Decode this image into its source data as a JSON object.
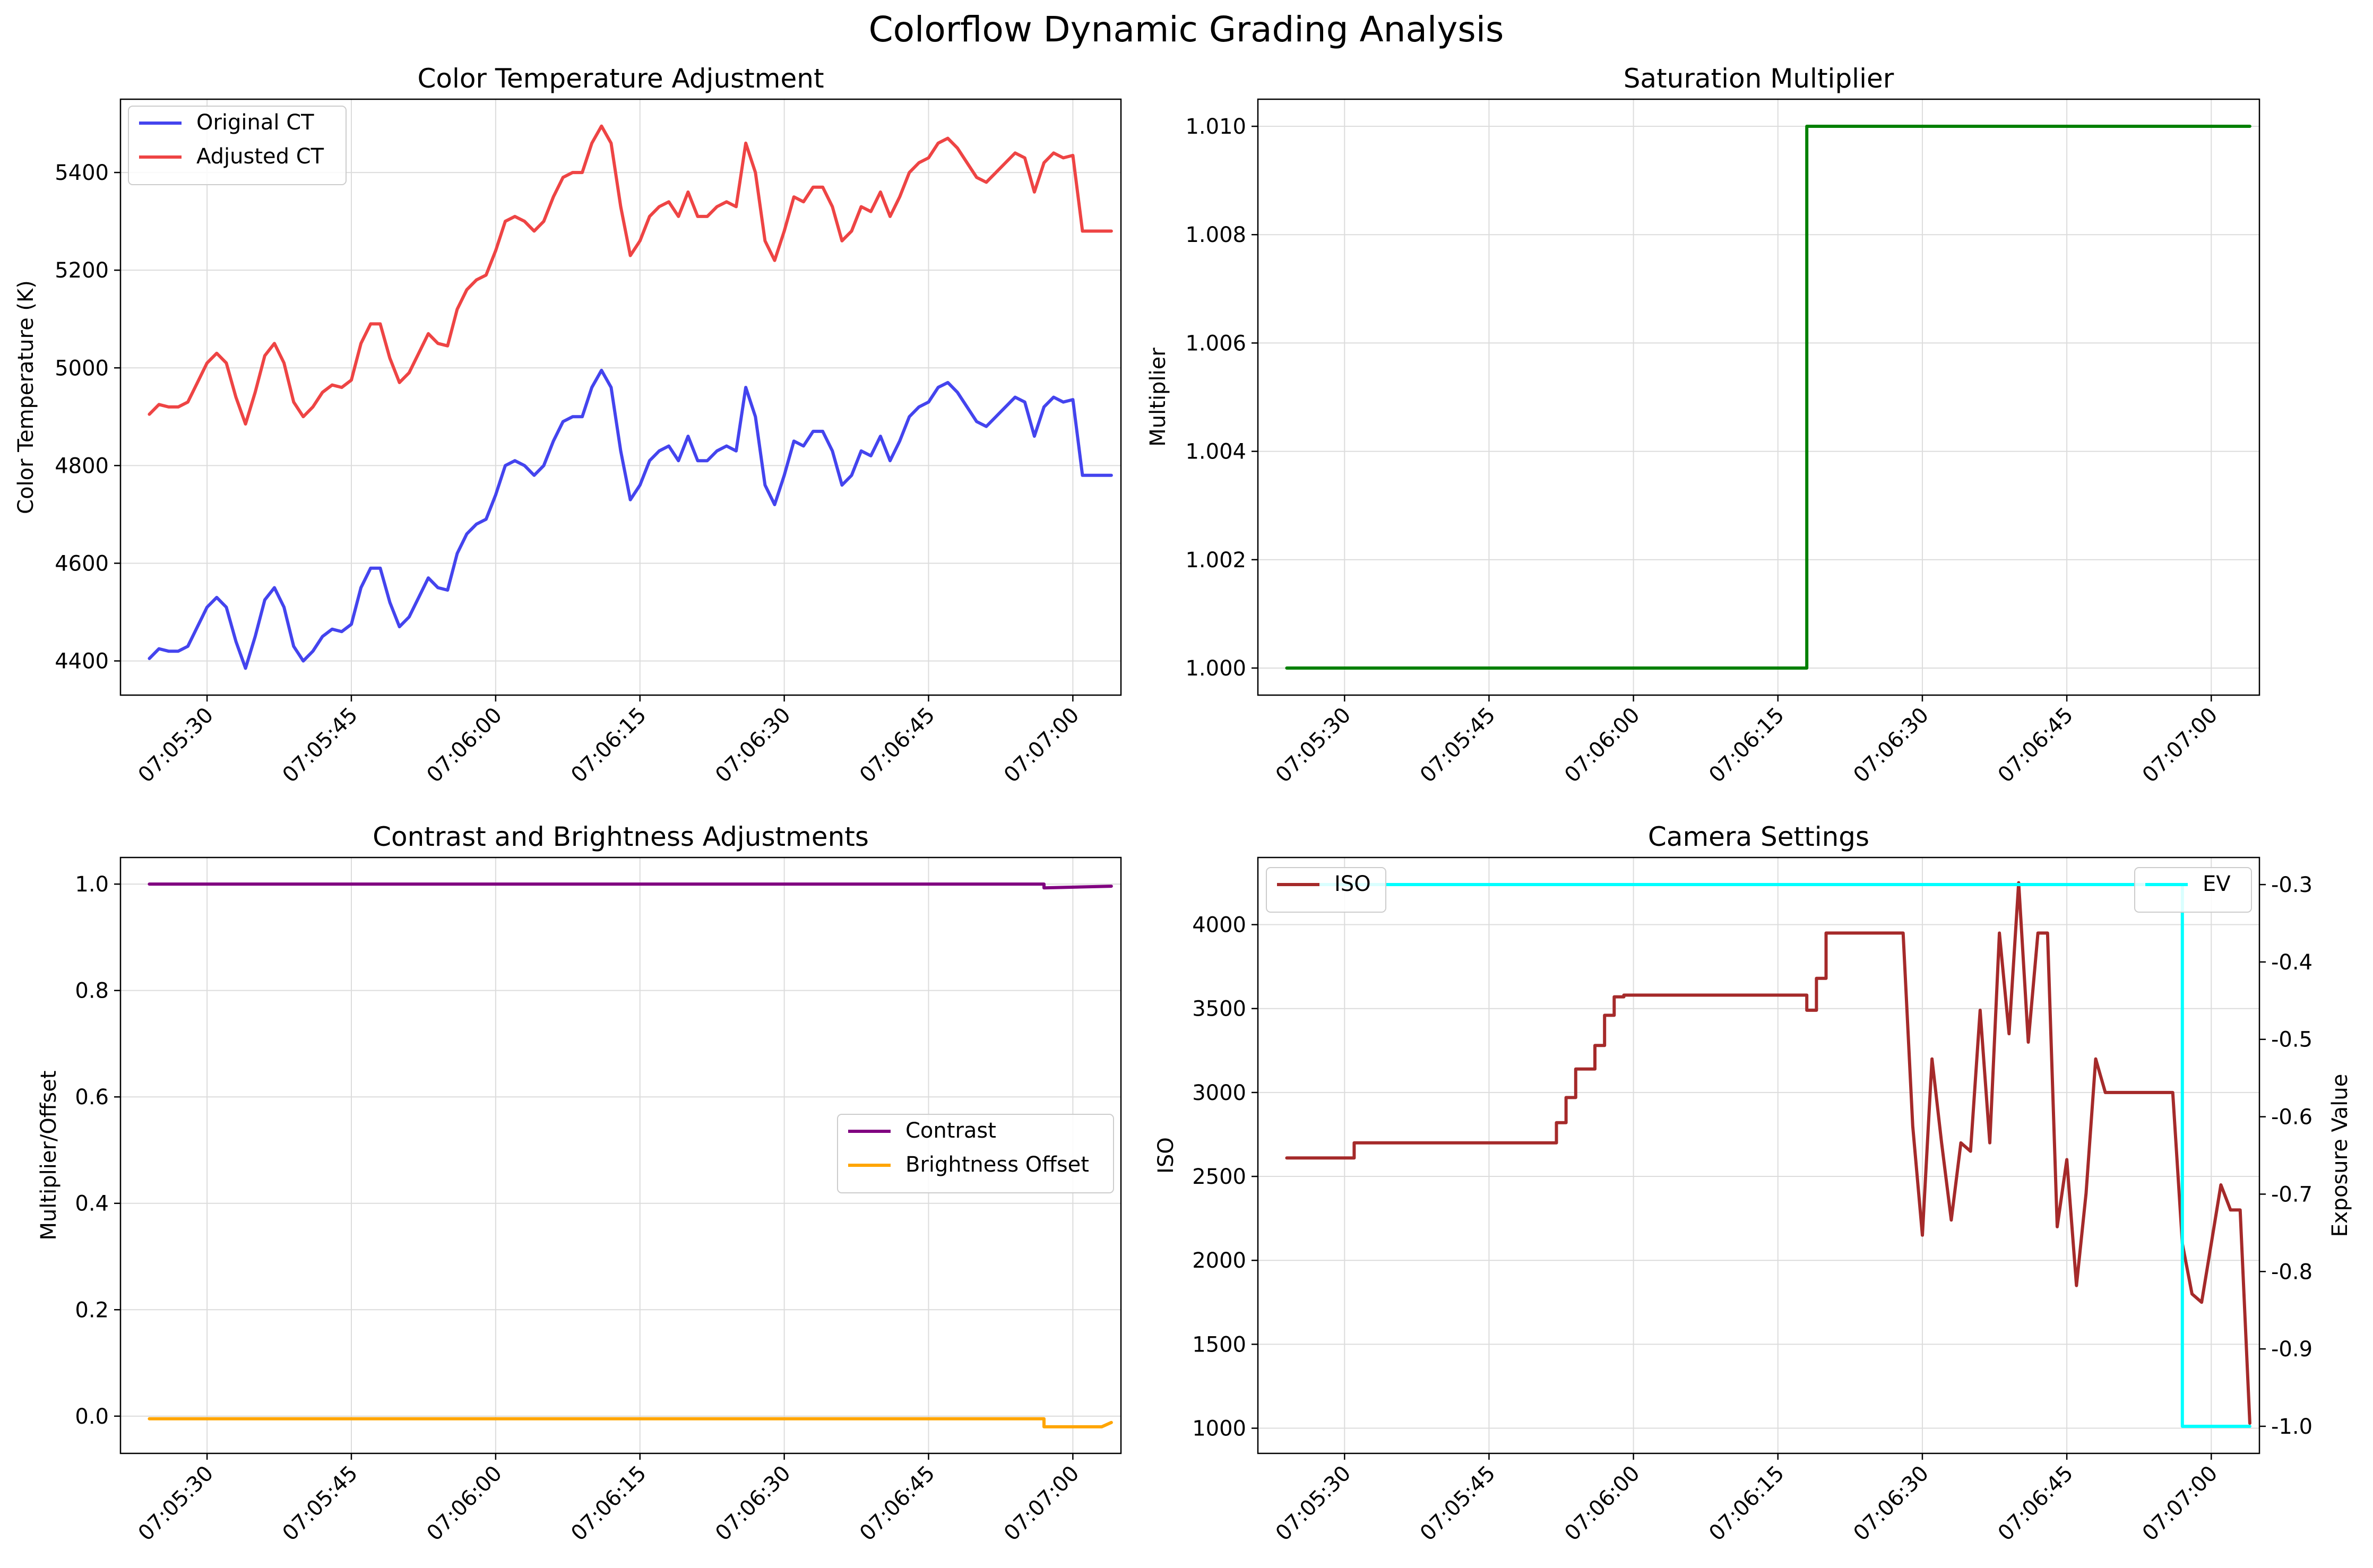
{
  "figure": {
    "title": "Colorflow Dynamic Grading Analysis"
  },
  "chart_data": [
    {
      "type": "line",
      "title": "Color Temperature Adjustment",
      "xlabel": "",
      "ylabel": "Color Temperature (K)",
      "x_type": "time",
      "xlim": [
        "07:05:21",
        "07:07:05"
      ],
      "ylim": [
        4330,
        5550
      ],
      "xticks": [
        "07:05:30",
        "07:05:45",
        "07:06:00",
        "07:06:15",
        "07:06:30",
        "07:06:45",
        "07:07:00"
      ],
      "yticks": [
        4400,
        4600,
        4800,
        5000,
        5200,
        5400
      ],
      "grid": true,
      "legend": "top-left",
      "series": [
        {
          "name": "Original CT",
          "color": "#4444ee",
          "x": [
            "07:05:24",
            "07:05:25",
            "07:05:26",
            "07:05:27",
            "07:05:28",
            "07:05:29",
            "07:05:30",
            "07:05:31",
            "07:05:32",
            "07:05:33",
            "07:05:34",
            "07:05:35",
            "07:05:36",
            "07:05:37",
            "07:05:38",
            "07:05:39",
            "07:05:40",
            "07:05:41",
            "07:05:42",
            "07:05:43",
            "07:05:44",
            "07:05:45",
            "07:05:46",
            "07:05:47",
            "07:05:48",
            "07:05:49",
            "07:05:50",
            "07:05:51",
            "07:05:52",
            "07:05:53",
            "07:05:54",
            "07:05:55",
            "07:05:56",
            "07:05:57",
            "07:05:58",
            "07:05:59",
            "07:06:00",
            "07:06:01",
            "07:06:02",
            "07:06:03",
            "07:06:04",
            "07:06:05",
            "07:06:06",
            "07:06:07",
            "07:06:08",
            "07:06:09",
            "07:06:10",
            "07:06:11",
            "07:06:12",
            "07:06:13",
            "07:06:14",
            "07:06:15",
            "07:06:16",
            "07:06:17",
            "07:06:18",
            "07:06:19",
            "07:06:20",
            "07:06:21",
            "07:06:22",
            "07:06:23",
            "07:06:24",
            "07:06:25",
            "07:06:26",
            "07:06:27",
            "07:06:28",
            "07:06:29",
            "07:06:30",
            "07:06:31",
            "07:06:32",
            "07:06:33",
            "07:06:34",
            "07:06:35",
            "07:06:36",
            "07:06:37",
            "07:06:38",
            "07:06:39",
            "07:06:40",
            "07:06:41",
            "07:06:42",
            "07:06:43",
            "07:06:44",
            "07:06:45",
            "07:06:46",
            "07:06:47",
            "07:06:48",
            "07:06:49",
            "07:06:50",
            "07:06:51",
            "07:06:52",
            "07:06:53",
            "07:06:54",
            "07:06:55",
            "07:06:56",
            "07:06:57",
            "07:06:58",
            "07:06:59",
            "07:07:00",
            "07:07:01",
            "07:07:02",
            "07:07:03",
            "07:07:04"
          ],
          "values": [
            4405,
            4425,
            4420,
            4420,
            4430,
            4470,
            4510,
            4530,
            4510,
            4440,
            4385,
            4450,
            4525,
            4550,
            4510,
            4430,
            4400,
            4420,
            4450,
            4465,
            4460,
            4475,
            4550,
            4590,
            4590,
            4520,
            4470,
            4490,
            4530,
            4570,
            4550,
            4545,
            4620,
            4660,
            4680,
            4690,
            4740,
            4800,
            4810,
            4800,
            4780,
            4800,
            4850,
            4890,
            4900,
            4900,
            4960,
            4995,
            4960,
            4830,
            4730,
            4760,
            4810,
            4830,
            4840,
            4810,
            4860,
            4810,
            4810,
            4830,
            4840,
            4830,
            4960,
            4900,
            4760,
            4720,
            4780,
            4850,
            4840,
            4870,
            4870,
            4830,
            4760,
            4780,
            4830,
            4820,
            4860,
            4810,
            4850,
            4900,
            4920,
            4930,
            4960,
            4970,
            4950,
            4920,
            4890,
            4880,
            4900,
            4920,
            4940,
            4930,
            4860,
            4920,
            4940,
            4930,
            4935,
            4780,
            4780,
            4780,
            4780
          ]
        },
        {
          "name": "Adjusted CT",
          "color": "#ee4444",
          "x": [
            "07:05:24",
            "07:05:25",
            "07:05:26",
            "07:05:27",
            "07:05:28",
            "07:05:29",
            "07:05:30",
            "07:05:31",
            "07:05:32",
            "07:05:33",
            "07:05:34",
            "07:05:35",
            "07:05:36",
            "07:05:37",
            "07:05:38",
            "07:05:39",
            "07:05:40",
            "07:05:41",
            "07:05:42",
            "07:05:43",
            "07:05:44",
            "07:05:45",
            "07:05:46",
            "07:05:47",
            "07:05:48",
            "07:05:49",
            "07:05:50",
            "07:05:51",
            "07:05:52",
            "07:05:53",
            "07:05:54",
            "07:05:55",
            "07:05:56",
            "07:05:57",
            "07:05:58",
            "07:05:59",
            "07:06:00",
            "07:06:01",
            "07:06:02",
            "07:06:03",
            "07:06:04",
            "07:06:05",
            "07:06:06",
            "07:06:07",
            "07:06:08",
            "07:06:09",
            "07:06:10",
            "07:06:11",
            "07:06:12",
            "07:06:13",
            "07:06:14",
            "07:06:15",
            "07:06:16",
            "07:06:17",
            "07:06:18",
            "07:06:19",
            "07:06:20",
            "07:06:21",
            "07:06:22",
            "07:06:23",
            "07:06:24",
            "07:06:25",
            "07:06:26",
            "07:06:27",
            "07:06:28",
            "07:06:29",
            "07:06:30",
            "07:06:31",
            "07:06:32",
            "07:06:33",
            "07:06:34",
            "07:06:35",
            "07:06:36",
            "07:06:37",
            "07:06:38",
            "07:06:39",
            "07:06:40",
            "07:06:41",
            "07:06:42",
            "07:06:43",
            "07:06:44",
            "07:06:45",
            "07:06:46",
            "07:06:47",
            "07:06:48",
            "07:06:49",
            "07:06:50",
            "07:06:51",
            "07:06:52",
            "07:06:53",
            "07:06:54",
            "07:06:55",
            "07:06:56",
            "07:06:57",
            "07:06:58",
            "07:06:59",
            "07:07:00",
            "07:07:01",
            "07:07:02",
            "07:07:03",
            "07:07:04"
          ],
          "values": [
            4905,
            4925,
            4920,
            4920,
            4930,
            4970,
            5010,
            5030,
            5010,
            4940,
            4885,
            4950,
            5025,
            5050,
            5010,
            4930,
            4900,
            4920,
            4950,
            4965,
            4960,
            4975,
            5050,
            5090,
            5090,
            5020,
            4970,
            4990,
            5030,
            5070,
            5050,
            5045,
            5120,
            5160,
            5180,
            5190,
            5240,
            5300,
            5310,
            5300,
            5280,
            5300,
            5350,
            5390,
            5400,
            5400,
            5460,
            5495,
            5460,
            5330,
            5230,
            5260,
            5310,
            5330,
            5340,
            5310,
            5360,
            5310,
            5310,
            5330,
            5340,
            5330,
            5460,
            5400,
            5260,
            5220,
            5280,
            5350,
            5340,
            5370,
            5370,
            5330,
            5260,
            5280,
            5330,
            5320,
            5360,
            5310,
            5350,
            5400,
            5420,
            5430,
            5460,
            5470,
            5450,
            5420,
            5390,
            5380,
            5400,
            5420,
            5440,
            5430,
            5360,
            5420,
            5440,
            5430,
            5435,
            5280,
            5280,
            5280,
            5280
          ]
        }
      ]
    },
    {
      "type": "line",
      "title": "Saturation Multiplier",
      "xlabel": "",
      "ylabel": "Multiplier",
      "x_type": "time",
      "xlim": [
        "07:05:21",
        "07:07:05"
      ],
      "ylim": [
        0.9995,
        1.0105
      ],
      "xticks": [
        "07:05:30",
        "07:05:45",
        "07:06:00",
        "07:06:15",
        "07:06:30",
        "07:06:45",
        "07:07:00"
      ],
      "yticks": [
        "1.000",
        "1.002",
        "1.004",
        "1.006",
        "1.008",
        "1.010"
      ],
      "grid": true,
      "series": [
        {
          "color": "#008000",
          "x": [
            "07:05:24",
            "07:06:18",
            "07:06:18",
            "07:07:04"
          ],
          "values": [
            1.0,
            1.0,
            1.01,
            1.01
          ]
        }
      ]
    },
    {
      "type": "line",
      "title": "Contrast and Brightness Adjustments",
      "xlabel": "",
      "ylabel": "Multiplier/Offset",
      "x_type": "time",
      "xlim": [
        "07:05:21",
        "07:07:05"
      ],
      "ylim": [
        -0.07,
        1.05
      ],
      "xticks": [
        "07:05:30",
        "07:05:45",
        "07:06:00",
        "07:06:15",
        "07:06:30",
        "07:06:45",
        "07:07:00"
      ],
      "yticks": [
        "0.0",
        "0.2",
        "0.4",
        "0.6",
        "0.8",
        "1.0"
      ],
      "grid": true,
      "legend": "center-right",
      "series": [
        {
          "name": "Contrast",
          "color": "#800080",
          "x": [
            "07:05:24",
            "07:06:57",
            "07:06:57",
            "07:07:04"
          ],
          "values": [
            1.0,
            1.0,
            0.993,
            0.996
          ]
        },
        {
          "name": "Brightness Offset",
          "color": "#ffa500",
          "x": [
            "07:05:24",
            "07:06:57",
            "07:06:57",
            "07:07:03",
            "07:07:04"
          ],
          "values": [
            -0.005,
            -0.005,
            -0.02,
            -0.02,
            -0.012
          ]
        }
      ]
    },
    {
      "type": "line",
      "title": "Camera Settings",
      "xlabel": "",
      "ylabel": "ISO",
      "ylabel_right": "Exposure Value",
      "x_type": "time",
      "xlim": [
        "07:05:21",
        "07:07:05"
      ],
      "ylim": [
        850,
        4400
      ],
      "ylim_right": [
        -1.035,
        -0.265
      ],
      "xticks": [
        "07:05:30",
        "07:05:45",
        "07:06:00",
        "07:06:15",
        "07:06:30",
        "07:06:45",
        "07:07:00"
      ],
      "yticks": [
        1000,
        1500,
        2000,
        2500,
        3000,
        3500,
        4000
      ],
      "yticks_right": [
        "-0.3",
        "-0.4",
        "-0.5",
        "-0.6",
        "-0.7",
        "-0.8",
        "-0.9",
        "-1.0"
      ],
      "grid": true,
      "legend": "top-left (ISO), top-right (EV)",
      "series": [
        {
          "name": "ISO",
          "axis": "left",
          "color": "#a52a2a",
          "x": [
            "07:05:24",
            "07:05:31",
            "07:05:31",
            "07:05:52",
            "07:05:52",
            "07:05:53",
            "07:05:53",
            "07:05:54",
            "07:05:54",
            "07:05:56",
            "07:05:56",
            "07:05:57",
            "07:05:57",
            "07:05:58",
            "07:05:58",
            "07:05:59",
            "07:05:59",
            "07:06:18",
            "07:06:18",
            "07:06:19",
            "07:06:19",
            "07:06:20",
            "07:06:20",
            "07:06:27",
            "07:06:28",
            "07:06:29",
            "07:06:30",
            "07:06:31",
            "07:06:32",
            "07:06:33",
            "07:06:34",
            "07:06:35",
            "07:06:36",
            "07:06:37",
            "07:06:38",
            "07:06:39",
            "07:06:40",
            "07:06:41",
            "07:06:42",
            "07:06:43",
            "07:06:44",
            "07:06:45",
            "07:06:46",
            "07:06:47",
            "07:06:48",
            "07:06:49",
            "07:06:50",
            "07:06:51",
            "07:06:52",
            "07:06:53",
            "07:06:54",
            "07:06:55",
            "07:06:56",
            "07:06:57",
            "07:06:58",
            "07:06:59",
            "07:07:00",
            "07:07:01",
            "07:07:02",
            "07:07:03",
            "07:07:04"
          ],
          "values": [
            2610,
            2610,
            2700,
            2700,
            2820,
            2820,
            2970,
            2970,
            3140,
            3140,
            3280,
            3280,
            3460,
            3460,
            3570,
            3570,
            3580,
            3580,
            3490,
            3490,
            3680,
            3680,
            3950,
            3950,
            3950,
            2800,
            2150,
            3200,
            2700,
            2240,
            2700,
            2650,
            3490,
            2700,
            3950,
            3350,
            4250,
            3300,
            3950,
            3950,
            2200,
            2600,
            1850,
            2400,
            3200,
            3000,
            3000,
            3000,
            3000,
            3000,
            3000,
            3000,
            3000,
            2100,
            1800,
            1750,
            2100,
            2450,
            2300,
            2300,
            1030
          ]
        },
        {
          "name": "EV",
          "axis": "right",
          "color": "#00ffff",
          "x": [
            "07:05:24",
            "07:06:57",
            "07:06:57",
            "07:07:04"
          ],
          "values": [
            -0.3,
            -0.3,
            -1.0,
            -1.0
          ]
        }
      ]
    }
  ]
}
